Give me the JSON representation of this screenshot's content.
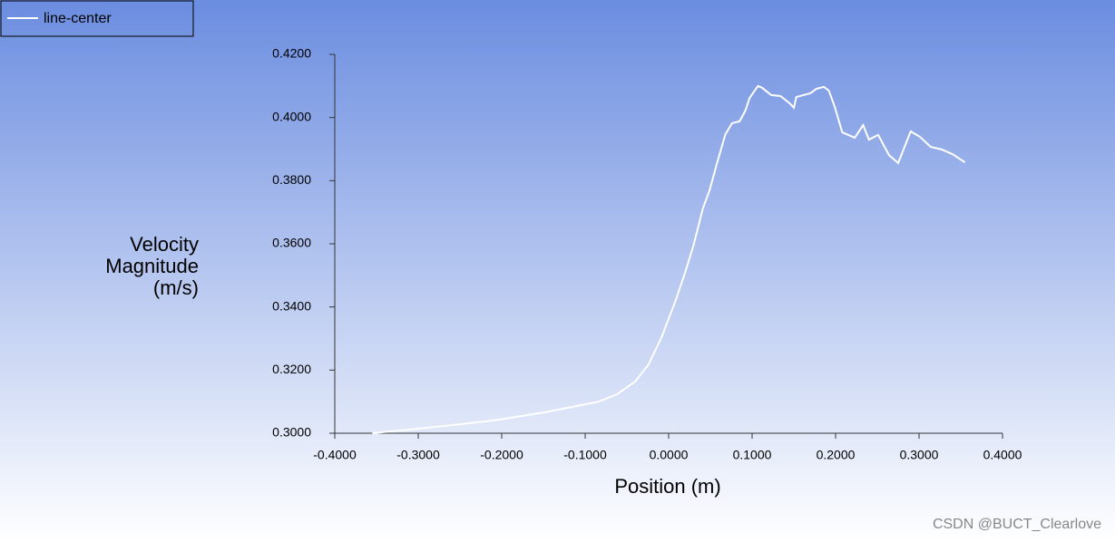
{
  "chart_data": {
    "type": "line",
    "x_label": "Position (m)",
    "y_label": [
      "Velocity",
      "Magnitude",
      "(m/s)"
    ],
    "legend": "upper left",
    "series": [
      {
        "name": "line-center",
        "color": "#ffffff",
        "x": [
          -0.355,
          -0.312,
          -0.258,
          -0.203,
          -0.149,
          -0.105,
          -0.084,
          -0.062,
          -0.04,
          -0.024,
          -0.008,
          0.009,
          0.02,
          0.03,
          0.041,
          0.049,
          0.058,
          0.068,
          0.076,
          0.085,
          0.092,
          0.097,
          0.101,
          0.107,
          0.112,
          0.123,
          0.134,
          0.145,
          0.15,
          0.153,
          0.17,
          0.177,
          0.186,
          0.192,
          0.199,
          0.208,
          0.223,
          0.233,
          0.24,
          0.251,
          0.264,
          0.275,
          0.29,
          0.301,
          0.314,
          0.327,
          0.34,
          0.355
        ],
        "values": [
          0.3,
          0.3011,
          0.3026,
          0.3043,
          0.3066,
          0.3089,
          0.31,
          0.3123,
          0.3164,
          0.3218,
          0.3307,
          0.3425,
          0.3511,
          0.3597,
          0.3712,
          0.3769,
          0.3856,
          0.3947,
          0.3982,
          0.3988,
          0.4022,
          0.4062,
          0.4077,
          0.41,
          0.4094,
          0.4071,
          0.4068,
          0.4045,
          0.4031,
          0.4065,
          0.4077,
          0.4091,
          0.4097,
          0.4085,
          0.4034,
          0.3953,
          0.3936,
          0.3976,
          0.393,
          0.3945,
          0.3881,
          0.3856,
          0.3956,
          0.3939,
          0.3907,
          0.3899,
          0.3884,
          0.3858
        ]
      }
    ],
    "xlim": [
      -0.4,
      0.4
    ],
    "ylim": [
      0.3,
      0.42
    ],
    "xticks": [
      {
        "value": -0.4,
        "label": "-0.4000"
      },
      {
        "value": -0.3,
        "label": "-0.3000"
      },
      {
        "value": -0.2,
        "label": "-0.2000"
      },
      {
        "value": -0.1,
        "label": "-0.1000"
      },
      {
        "value": 0,
        "label": "0.0000"
      },
      {
        "value": 0.1,
        "label": "0.1000"
      },
      {
        "value": 0.2,
        "label": "0.2000"
      },
      {
        "value": 0.3,
        "label": "0.3000"
      },
      {
        "value": 0.4,
        "label": "0.4000"
      }
    ],
    "yticks": [
      {
        "value": 0.3,
        "label": "0.3000"
      },
      {
        "value": 0.32,
        "label": "0.3200"
      },
      {
        "value": 0.34,
        "label": "0.3400"
      },
      {
        "value": 0.36,
        "label": "0.3600"
      },
      {
        "value": 0.38,
        "label": "0.3800"
      },
      {
        "value": 0.4,
        "label": "0.4000"
      },
      {
        "value": 0.42,
        "label": "0.4200"
      }
    ],
    "grid": false
  },
  "watermark": "CSDN @BUCT_Clearlove"
}
